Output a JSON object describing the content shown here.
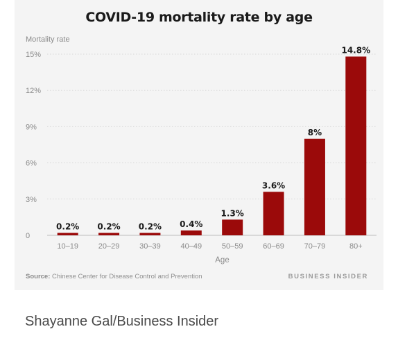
{
  "chart_data": {
    "type": "bar",
    "title": "COVID-19 mortality rate by age",
    "ylabel": "Mortality rate",
    "xlabel": "Age",
    "categories": [
      "10–19",
      "20–29",
      "30–39",
      "40–49",
      "50–59",
      "60–69",
      "70–79",
      "80+"
    ],
    "values": [
      0.2,
      0.2,
      0.2,
      0.4,
      1.3,
      3.6,
      8,
      14.8
    ],
    "data_labels": [
      "0.2%",
      "0.2%",
      "0.2%",
      "0.4%",
      "1.3%",
      "3.6%",
      "8%",
      "14.8%"
    ],
    "yticks": [
      0,
      3,
      6,
      9,
      12,
      15
    ],
    "ytick_labels": [
      "0",
      "3%",
      "6%",
      "9%",
      "12%",
      "15%"
    ],
    "ylim": [
      0,
      15
    ],
    "grid": true,
    "bar_color": "#9b0a0a"
  },
  "footer": {
    "source_label": "Source:",
    "source_text": "Chinese Center for Disease Control and Prevention",
    "brand": "BUSINESS INSIDER"
  },
  "credit": "Shayanne Gal/Business Insider"
}
